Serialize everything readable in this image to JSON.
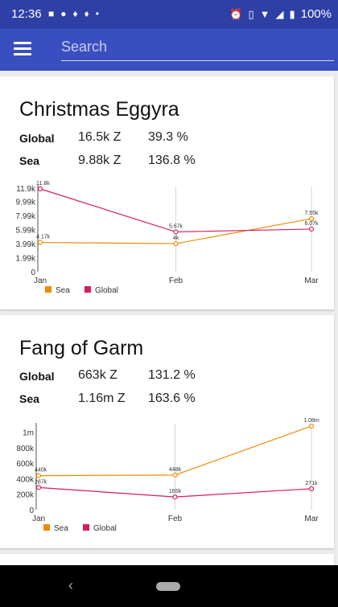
{
  "status_bar": {
    "time": "12:36",
    "battery": "100%",
    "icons": [
      "facebook-icon",
      "line-icon",
      "bulb-icon",
      "bulb-icon",
      "dot-icon",
      "alarm-icon",
      "vibrate-icon",
      "wifi-icon",
      "signal-icon",
      "battery-icon"
    ]
  },
  "app_bar": {
    "search_placeholder": "Search"
  },
  "colors": {
    "primary": "#3a4fbf",
    "sea": "#f08a00",
    "global": "#d81b60"
  },
  "cards": [
    {
      "title": "Christmas Eggyra",
      "rows": [
        {
          "label": "Global",
          "value": "16.5k Z",
          "pct": "39.3 %"
        },
        {
          "label": "Sea",
          "value": "9.88k Z",
          "pct": "136.8 %"
        }
      ]
    },
    {
      "title": "Fang of Garm",
      "rows": [
        {
          "label": "Global",
          "value": "663k Z",
          "pct": "131.2 %"
        },
        {
          "label": "Sea",
          "value": "1.16m Z",
          "pct": "163.6 %"
        }
      ]
    }
  ],
  "chart_data": [
    {
      "type": "line",
      "categories": [
        "Jan",
        "Feb",
        "Mar"
      ],
      "ylim": [
        0,
        11900
      ],
      "yticks": [
        0,
        1990,
        3990,
        5990,
        7990,
        9990,
        11900
      ],
      "ytick_labels": [
        "0",
        "1.99k",
        "3.99k",
        "5.99k",
        "7.99k",
        "9.99k",
        "11.9k"
      ],
      "series": [
        {
          "name": "Sea",
          "values": [
            4170,
            4000,
            7550
          ],
          "labels": [
            "4.17k",
            "4k",
            "7.55k"
          ]
        },
        {
          "name": "Global",
          "values": [
            11800,
            5670,
            6070
          ],
          "labels": [
            "11.8k",
            "5.67k",
            "6.07k"
          ]
        }
      ],
      "legend": "bottom-left"
    },
    {
      "type": "line",
      "categories": [
        "Jan",
        "Feb",
        "Mar"
      ],
      "ylim": [
        0,
        1080000
      ],
      "yticks": [
        0,
        200000,
        400000,
        600000,
        800000,
        1000000
      ],
      "ytick_labels": [
        "0",
        "200k",
        "400k",
        "600k",
        "800k",
        "1m"
      ],
      "series": [
        {
          "name": "Sea",
          "values": [
            440000,
            448000,
            1080000
          ],
          "labels": [
            "440k",
            "448k",
            "1.08m"
          ]
        },
        {
          "name": "Global",
          "values": [
            287000,
            165000,
            271000
          ],
          "labels": [
            "287k",
            "165k",
            "271k"
          ]
        }
      ],
      "legend": "bottom-left"
    }
  ]
}
